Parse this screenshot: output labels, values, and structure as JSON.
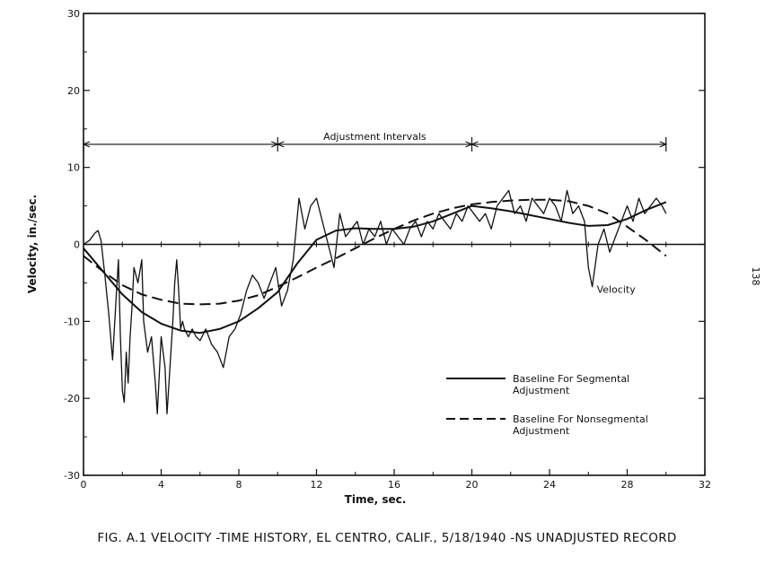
{
  "page_number": "138",
  "caption": "FIG. A.1  VELOCITY -TIME HISTORY,  EL CENTRO,  CALIF.,  5/18/1940 -NS UNADJUSTED RECORD",
  "chart_data": {
    "type": "line",
    "title": "FIG. A.1  VELOCITY -TIME HISTORY,  EL CENTRO,  CALIF.,  5/18/1940 -NS UNADJUSTED RECORD",
    "xlabel": "Time, sec.",
    "ylabel": "Velocity, in./sec.",
    "xlim": [
      0,
      32
    ],
    "ylim": [
      -30,
      30
    ],
    "x_ticks": [
      0,
      4,
      8,
      12,
      16,
      20,
      24,
      28,
      32
    ],
    "y_ticks": [
      -30,
      -20,
      -10,
      0,
      10,
      20,
      30
    ],
    "x_tick_labels": [
      "0",
      "4",
      "8",
      "12",
      "16",
      "20",
      "24",
      "28",
      "32"
    ],
    "y_tick_labels": [
      "-30",
      "-20",
      "-10",
      "0",
      "10",
      "20",
      "30"
    ],
    "grid": false,
    "annotations": {
      "adjustment_intervals": {
        "label": "Adjustment Intervals",
        "y": 13,
        "boundaries": [
          0,
          10,
          20,
          30
        ]
      },
      "velocity_label": {
        "text": "Velocity",
        "x": 26.2,
        "y": -5.8
      }
    },
    "legend": {
      "position": "lower-right",
      "entries": [
        {
          "label_line1": "Baseline For Segmental",
          "label_line2": "Adjustment",
          "style": "solid"
        },
        {
          "label_line1": "Baseline For Nonsegmental",
          "label_line2": "Adjustment",
          "style": "dashed"
        }
      ]
    },
    "series": [
      {
        "name": "Velocity",
        "style": "thin",
        "x": [
          0,
          0.3,
          0.6,
          0.75,
          0.9,
          1.1,
          1.3,
          1.5,
          1.7,
          1.8,
          1.9,
          2.0,
          2.1,
          2.2,
          2.3,
          2.4,
          2.5,
          2.6,
          2.8,
          3.0,
          3.1,
          3.3,
          3.5,
          3.7,
          3.8,
          4.0,
          4.2,
          4.3,
          4.4,
          4.5,
          4.6,
          4.7,
          4.8,
          4.9,
          5.0,
          5.1,
          5.2,
          5.4,
          5.6,
          5.8,
          6.0,
          6.3,
          6.6,
          6.9,
          7.2,
          7.5,
          7.8,
          8.1,
          8.4,
          8.7,
          9.0,
          9.3,
          9.6,
          9.9,
          10.2,
          10.5,
          10.8,
          11.1,
          11.4,
          11.7,
          12.0,
          12.3,
          12.6,
          12.9,
          13.2,
          13.5,
          13.8,
          14.1,
          14.4,
          14.7,
          15.0,
          15.3,
          15.6,
          15.9,
          16.2,
          16.5,
          16.8,
          17.1,
          17.4,
          17.7,
          18.0,
          18.3,
          18.6,
          18.9,
          19.2,
          19.5,
          19.8,
          20.1,
          20.4,
          20.7,
          21.0,
          21.3,
          21.6,
          21.9,
          22.2,
          22.5,
          22.8,
          23.1,
          23.4,
          23.7,
          24.0,
          24.3,
          24.6,
          24.9,
          25.2,
          25.5,
          25.8,
          26.0,
          26.2,
          26.5,
          26.8,
          27.1,
          27.4,
          27.7,
          28.0,
          28.3,
          28.6,
          28.9,
          29.2,
          29.5,
          29.8,
          30.0
        ],
        "values": [
          0,
          0.5,
          1.5,
          1.8,
          0.5,
          -4,
          -9,
          -15,
          -6,
          -2,
          -12,
          -19,
          -20.5,
          -14,
          -18,
          -12,
          -8,
          -3,
          -5,
          -2,
          -10,
          -14,
          -12,
          -18,
          -22,
          -12,
          -16,
          -22,
          -18,
          -14,
          -10,
          -5,
          -2,
          -6,
          -11,
          -10,
          -11,
          -12,
          -11,
          -12,
          -12.5,
          -11,
          -13,
          -14,
          -16,
          -12,
          -11,
          -9,
          -6,
          -4,
          -5,
          -7,
          -5,
          -3,
          -8,
          -6,
          -2,
          6,
          2,
          5,
          6,
          3,
          0,
          -3,
          4,
          1,
          2,
          3,
          0,
          2,
          1,
          3,
          0,
          2,
          1,
          0,
          2,
          3,
          1,
          3,
          2,
          4,
          3,
          2,
          4,
          3,
          5,
          4,
          3,
          4,
          2,
          5,
          6,
          7,
          4,
          5,
          3,
          6,
          5,
          4,
          6,
          5,
          3,
          7,
          4,
          5,
          3,
          -3,
          -5.5,
          0,
          2,
          -1,
          1,
          3,
          5,
          3,
          6,
          4,
          5,
          6,
          5,
          4
        ]
      },
      {
        "name": "Baseline For Segmental Adjustment",
        "style": "solid",
        "x": [
          0,
          1,
          2,
          3,
          4,
          5,
          6,
          7,
          8,
          9,
          10,
          11,
          12,
          13,
          14,
          15,
          16,
          17,
          18,
          19,
          20,
          21,
          22,
          23,
          24,
          25,
          26,
          27,
          28,
          29,
          30
        ],
        "values": [
          -0.5,
          -3.5,
          -6.5,
          -8.8,
          -10.3,
          -11.2,
          -11.5,
          -11.0,
          -10.0,
          -8.3,
          -6.2,
          -2.5,
          0.6,
          1.8,
          2.1,
          2.0,
          2.0,
          2.3,
          3.0,
          4.0,
          5.0,
          4.7,
          4.3,
          3.8,
          3.3,
          2.8,
          2.4,
          2.5,
          3.3,
          4.5,
          5.5
        ]
      },
      {
        "name": "Baseline For Nonsegmental Adjustment",
        "style": "dashed",
        "x": [
          0,
          1,
          2,
          3,
          4,
          5,
          6,
          7,
          8,
          9,
          10,
          11,
          12,
          13,
          14,
          15,
          16,
          17,
          18,
          19,
          20,
          21,
          22,
          23,
          24,
          25,
          26,
          27,
          28,
          29,
          30
        ],
        "values": [
          -1.5,
          -3.5,
          -5.3,
          -6.5,
          -7.2,
          -7.7,
          -7.8,
          -7.7,
          -7.3,
          -6.6,
          -5.5,
          -4.3,
          -3.0,
          -1.8,
          -0.5,
          0.8,
          2.0,
          3.1,
          4.0,
          4.7,
          5.2,
          5.5,
          5.7,
          5.8,
          5.8,
          5.6,
          5.0,
          4.0,
          2.3,
          0.5,
          -1.5
        ]
      }
    ]
  }
}
